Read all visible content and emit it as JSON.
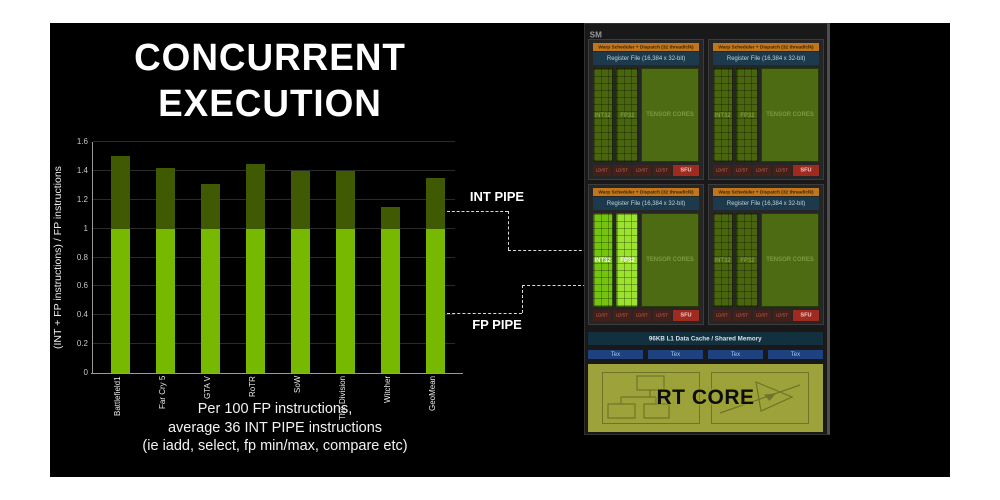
{
  "slide": {
    "title_line1": "CONCURRENT",
    "title_line2": "EXECUTION",
    "background": "#000000"
  },
  "chart_data": {
    "type": "bar",
    "stacked": true,
    "categories": [
      "Battlefield1",
      "Far Cry 5",
      "GTA V",
      "RoTR",
      "SoW",
      "The Division",
      "Witcher",
      "GeoMean"
    ],
    "series": [
      {
        "name": "FP PIPE",
        "color": "#76b900",
        "values": [
          1,
          1,
          1,
          1,
          1,
          1,
          1,
          1
        ]
      },
      {
        "name": "INT PIPE",
        "color": "#405a04",
        "values": [
          0.5,
          0.42,
          0.31,
          0.45,
          0.4,
          0.4,
          0.15,
          0.35
        ]
      }
    ],
    "totals": [
      1.5,
      1.42,
      1.31,
      1.45,
      1.4,
      1.4,
      1.15,
      1.35
    ],
    "title": "",
    "xlabel": "",
    "ylabel": "(INT + FP instructions) / FP instructions",
    "ylim": [
      0,
      1.6
    ],
    "ytick_values": [
      0,
      0.2,
      0.4,
      0.6,
      0.8,
      1,
      1.2,
      1.4,
      1.6
    ],
    "ytick_labels": [
      "0",
      "0.2",
      "0.4",
      "0.6",
      "0.8",
      "1",
      "1.2",
      "1.4",
      "1.6"
    ],
    "grid": true,
    "legend_position": "none"
  },
  "caption": {
    "line1": "Per 100 FP instructions,",
    "line2": "average 36 INT PIPE instructions",
    "line3": "(ie iadd, select, fp min/max, compare etc)"
  },
  "annotations": {
    "int_pipe_label": "INT PIPE",
    "fp_pipe_label": "FP PIPE"
  },
  "sm": {
    "label": "SM",
    "scheduler_label": "Warp Scheduler + Dispatch (32 thread/clk)",
    "register_label": "Register File (16,384 x 32-bit)",
    "int32_label": "INT32",
    "fp32_label": "FP32",
    "tensor_label_1": "TENSOR",
    "tensor_label_2": "CORES",
    "ldst_label": "LD/ST",
    "sfu_label": "SFU",
    "quadrants": [
      {
        "highlighted": false
      },
      {
        "highlighted": false
      },
      {
        "highlighted": true
      },
      {
        "highlighted": false
      }
    ],
    "l1_label": "96KB L1 Data Cache / Shared Memory",
    "tex_label": "Tex",
    "tex_count": 4,
    "rt_core_label": "RT CORE"
  },
  "colors": {
    "fp_green": "#76b900",
    "int_dark_green": "#405a04",
    "highlight_int32": "#74c30d",
    "highlight_fp32": "#9be32d",
    "scheduler_orange": "#c1761c",
    "register_blue": "#1c3a4b",
    "tex_blue": "#1e4180",
    "sfu_red": "#9e2a20",
    "ldst_maroon": "#44201a",
    "rt_olive": "#9da23a"
  }
}
